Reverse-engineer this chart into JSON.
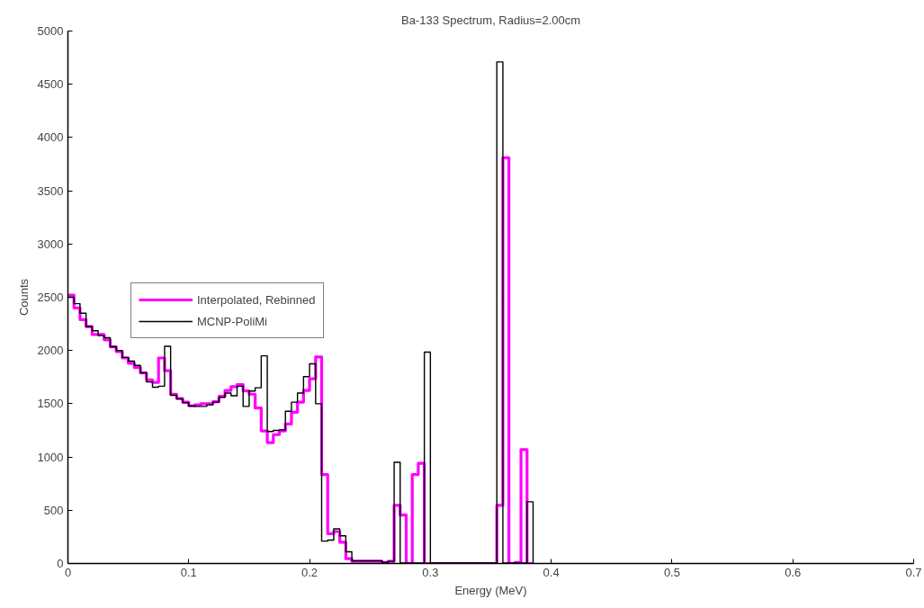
{
  "chart_data": {
    "type": "step",
    "title": "Ba-133 Spectrum, Radius=2.00cm",
    "xlabel": "Energy (MeV)",
    "ylabel": "Counts",
    "x": [
      0,
      0.005,
      0.01,
      0.015,
      0.02,
      0.025,
      0.03,
      0.035,
      0.04,
      0.045,
      0.05,
      0.055,
      0.06,
      0.065,
      0.07,
      0.075,
      0.08,
      0.085,
      0.09,
      0.095,
      0.1,
      0.105,
      0.11,
      0.115,
      0.12,
      0.125,
      0.13,
      0.135,
      0.14,
      0.145,
      0.15,
      0.155,
      0.16,
      0.165,
      0.17,
      0.175,
      0.18,
      0.185,
      0.19,
      0.195,
      0.2,
      0.205,
      0.21,
      0.215,
      0.22,
      0.225,
      0.23,
      0.235,
      0.24,
      0.245,
      0.25,
      0.255,
      0.26,
      0.265,
      0.27,
      0.275,
      0.28,
      0.285,
      0.29,
      0.295,
      0.3,
      0.305,
      0.31,
      0.315,
      0.32,
      0.325,
      0.33,
      0.335,
      0.34,
      0.345,
      0.35,
      0.355,
      0.36,
      0.365,
      0.37,
      0.375,
      0.38,
      0.385
    ],
    "series": [
      {
        "name": "Interpolated, Rebinned",
        "color": "#ff00ff",
        "values": [
          2520,
          2400,
          2290,
          2225,
          2150,
          2150,
          2100,
          2035,
          1990,
          1930,
          1880,
          1840,
          1790,
          1725,
          1700,
          1930,
          1810,
          1590,
          1550,
          1515,
          1480,
          1490,
          1500,
          1500,
          1520,
          1570,
          1625,
          1660,
          1680,
          1620,
          1590,
          1460,
          1245,
          1135,
          1210,
          1245,
          1310,
          1420,
          1515,
          1625,
          1735,
          1940,
          835,
          280,
          300,
          200,
          45,
          20,
          20,
          20,
          20,
          20,
          10,
          20,
          545,
          455,
          0,
          835,
          940,
          0,
          0,
          0,
          0,
          0,
          0,
          0,
          0,
          0,
          0,
          0,
          0,
          545,
          3810,
          0,
          10,
          1070,
          0,
          0
        ]
      },
      {
        "name": "MCNP-PoliMi",
        "color": "#000000",
        "values": [
          2500,
          2440,
          2350,
          2225,
          2185,
          2140,
          2120,
          2035,
          2000,
          1935,
          1900,
          1860,
          1790,
          1705,
          1655,
          1665,
          2040,
          1580,
          1545,
          1510,
          1480,
          1475,
          1475,
          1490,
          1515,
          1560,
          1600,
          1575,
          1665,
          1475,
          1620,
          1650,
          1950,
          1240,
          1250,
          1255,
          1430,
          1515,
          1600,
          1755,
          1875,
          1500,
          210,
          220,
          325,
          260,
          110,
          25,
          25,
          25,
          25,
          25,
          10,
          20,
          950,
          5,
          5,
          5,
          5,
          1985,
          5,
          5,
          5,
          5,
          5,
          5,
          5,
          5,
          5,
          5,
          5,
          4710,
          5,
          5,
          5,
          5,
          580,
          0
        ]
      }
    ],
    "xlim": [
      0,
      0.7
    ],
    "ylim": [
      0,
      5000
    ],
    "xticks": [
      0,
      0.1,
      0.2,
      0.3,
      0.4,
      0.5,
      0.6,
      0.7
    ],
    "yticks": [
      0,
      500,
      1000,
      1500,
      2000,
      2500,
      3000,
      3500,
      4000,
      4500,
      5000
    ],
    "grid": false,
    "legend": "left",
    "line_style": "solid"
  }
}
